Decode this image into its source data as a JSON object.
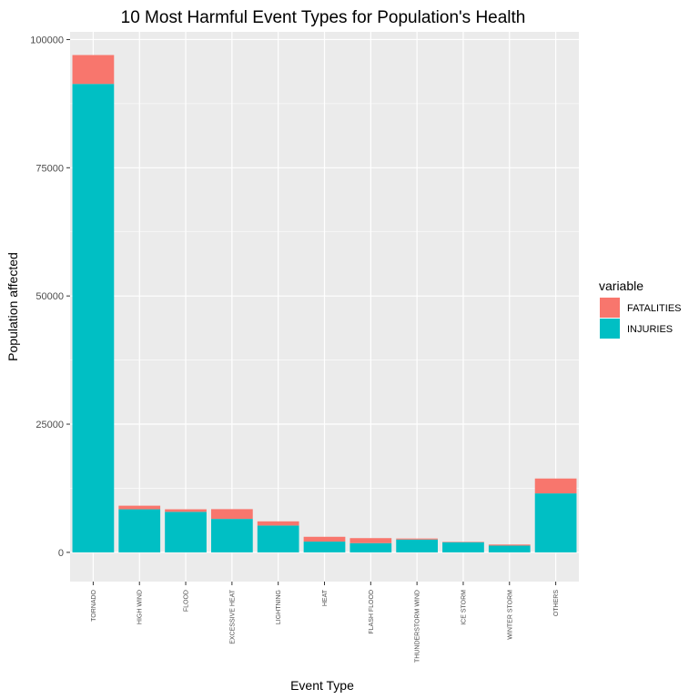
{
  "chart_data": {
    "type": "bar",
    "stacked": true,
    "title": "10 Most Harmful Event Types for Population's Health",
    "xlabel": "Event Type",
    "ylabel": "Population affected",
    "categories": [
      "TORNADO",
      "HIGH WIND",
      "FLOOD",
      "EXCESSIVE HEAT",
      "LIGHTNING",
      "HEAT",
      "FLASH FLOOD",
      "THUNDERSTORM WIND",
      "ICE STORM",
      "WINTER STORM",
      "OTHERS"
    ],
    "series": [
      {
        "name": "INJURIES",
        "color": "#00BFC4",
        "values": [
          91346,
          8400,
          7900,
          6525,
          5230,
          2100,
          1800,
          2500,
          1975,
          1320,
          11500
        ]
      },
      {
        "name": "FATALITIES",
        "color": "#F8766D",
        "values": [
          5633,
          700,
          500,
          1903,
          817,
          937,
          978,
          200,
          89,
          206,
          2900
        ]
      }
    ],
    "ylim": [
      -5700,
      101500
    ],
    "yticks": [
      0,
      25000,
      50000,
      75000,
      100000
    ],
    "ytick_labels": [
      "0",
      "25000",
      "50000",
      "75000",
      "100000"
    ],
    "grid": true,
    "legend": {
      "title": "variable",
      "position": "right",
      "entries": [
        {
          "label": "FATALITIES",
          "color": "#F8766D"
        },
        {
          "label": "INJURIES",
          "color": "#00BFC4"
        }
      ]
    },
    "panel_background": "#EBEBEB",
    "grid_color": "#FFFFFF"
  }
}
